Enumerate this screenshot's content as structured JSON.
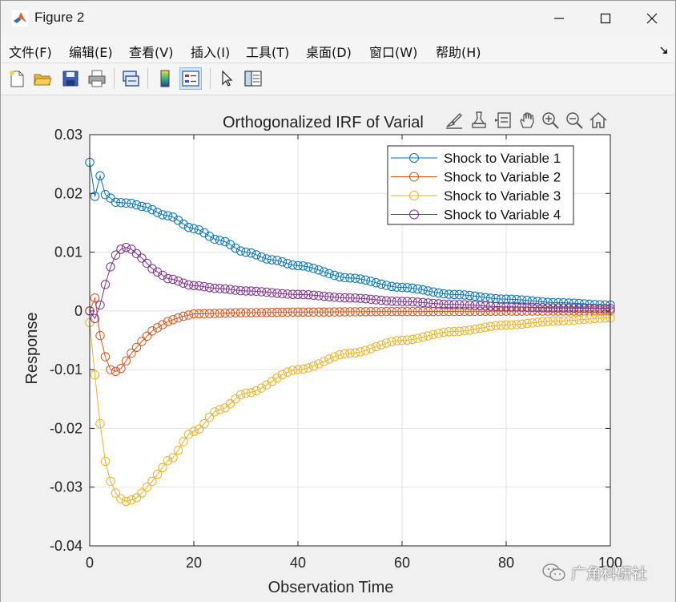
{
  "window": {
    "title": "Figure 2",
    "minimize_icon": "minimize-icon",
    "maximize_icon": "maximize-icon",
    "close_icon": "close-icon"
  },
  "menu": {
    "items": [
      {
        "label": "文件(F)"
      },
      {
        "label": "编辑(E)"
      },
      {
        "label": "查看(V)"
      },
      {
        "label": "插入(I)"
      },
      {
        "label": "工具(T)"
      },
      {
        "label": "桌面(D)"
      },
      {
        "label": "窗口(W)"
      },
      {
        "label": "帮助(H)"
      }
    ]
  },
  "toolbar": {
    "icons": [
      "new-figure-icon",
      "open-file-icon",
      "save-icon",
      "print-icon",
      "link-plot-icon",
      "colorbar-icon",
      "legend-icon",
      "pointer-icon",
      "property-inspector-icon"
    ]
  },
  "axes_toolbar": {
    "icons": [
      "brush-icon",
      "data-tips-icon",
      "data-cursor-icon",
      "pan-icon",
      "zoom-in-icon",
      "zoom-out-icon",
      "home-icon"
    ]
  },
  "watermark": {
    "text": "广角科研社"
  },
  "colors": {
    "series1": "#0072BD",
    "series2": "#D95319",
    "series3": "#EDB120",
    "series4": "#7E2F8E"
  },
  "chart_data": {
    "type": "line",
    "title": "Orthogonalized IRF of Varial",
    "xlabel": "Observation Time",
    "ylabel": "Response",
    "xlim": [
      0,
      100
    ],
    "ylim": [
      -0.04,
      0.03
    ],
    "xticks": [
      "0",
      "20",
      "40",
      "60",
      "80",
      "100"
    ],
    "yticks": [
      "0.03",
      "0.02",
      "0.01",
      "0",
      "-0.01",
      "-0.02",
      "-0.03",
      "-0.04"
    ],
    "grid": true,
    "legend_position": "top-right",
    "marker": "circle",
    "series": [
      {
        "name": "Shock to Variable 1",
        "keypoints": [
          [
            0,
            0.0253
          ],
          [
            1,
            0.0195
          ],
          [
            2,
            0.023
          ],
          [
            3,
            0.0198
          ],
          [
            4,
            0.0192
          ],
          [
            5,
            0.0185
          ],
          [
            8,
            0.0183
          ],
          [
            10,
            0.0178
          ],
          [
            15,
            0.0162
          ],
          [
            20,
            0.014
          ],
          [
            25,
            0.012
          ],
          [
            30,
            0.01
          ],
          [
            35,
            0.0087
          ],
          [
            40,
            0.0077
          ],
          [
            50,
            0.0056
          ],
          [
            60,
            0.004
          ],
          [
            70,
            0.0028
          ],
          [
            80,
            0.002
          ],
          [
            90,
            0.0014
          ],
          [
            100,
            0.001
          ]
        ]
      },
      {
        "name": "Shock to Variable 2",
        "keypoints": [
          [
            0,
            0.0
          ],
          [
            1,
            0.0022
          ],
          [
            2,
            -0.0042
          ],
          [
            3,
            -0.0078
          ],
          [
            4,
            -0.01
          ],
          [
            5,
            -0.0103
          ],
          [
            6,
            -0.0098
          ],
          [
            7,
            -0.0085
          ],
          [
            8,
            -0.0072
          ],
          [
            10,
            -0.0052
          ],
          [
            12,
            -0.0034
          ],
          [
            15,
            -0.0018
          ],
          [
            18,
            -0.0009
          ],
          [
            20,
            -0.0005
          ],
          [
            30,
            -0.0003
          ],
          [
            40,
            -0.0002
          ],
          [
            60,
            -0.0001
          ],
          [
            100,
            0.0
          ]
        ]
      },
      {
        "name": "Shock to Variable 3",
        "keypoints": [
          [
            0,
            -0.002
          ],
          [
            1,
            -0.0109
          ],
          [
            2,
            -0.0192
          ],
          [
            3,
            -0.0256
          ],
          [
            4,
            -0.029
          ],
          [
            5,
            -0.031
          ],
          [
            6,
            -0.032
          ],
          [
            7,
            -0.0324
          ],
          [
            8,
            -0.0322
          ],
          [
            9,
            -0.0318
          ],
          [
            10,
            -0.031
          ],
          [
            12,
            -0.029
          ],
          [
            15,
            -0.0255
          ],
          [
            20,
            -0.0205
          ],
          [
            25,
            -0.0168
          ],
          [
            30,
            -0.014
          ],
          [
            40,
            -0.01
          ],
          [
            50,
            -0.0072
          ],
          [
            60,
            -0.005
          ],
          [
            70,
            -0.0035
          ],
          [
            80,
            -0.0024
          ],
          [
            90,
            -0.0017
          ],
          [
            100,
            -0.0012
          ]
        ]
      },
      {
        "name": "Shock to Variable 4",
        "keypoints": [
          [
            0,
            0.0
          ],
          [
            1,
            -0.0013
          ],
          [
            2,
            0.001
          ],
          [
            3,
            0.0045
          ],
          [
            4,
            0.0075
          ],
          [
            5,
            0.0095
          ],
          [
            6,
            0.0105
          ],
          [
            7,
            0.0108
          ],
          [
            8,
            0.0105
          ],
          [
            10,
            0.009
          ],
          [
            12,
            0.0072
          ],
          [
            15,
            0.0055
          ],
          [
            20,
            0.0043
          ],
          [
            25,
            0.0038
          ],
          [
            30,
            0.0034
          ],
          [
            40,
            0.0028
          ],
          [
            50,
            0.0022
          ],
          [
            60,
            0.0016
          ],
          [
            70,
            0.0011
          ],
          [
            80,
            0.0007
          ],
          [
            90,
            0.0005
          ],
          [
            100,
            0.0004
          ]
        ]
      }
    ]
  }
}
